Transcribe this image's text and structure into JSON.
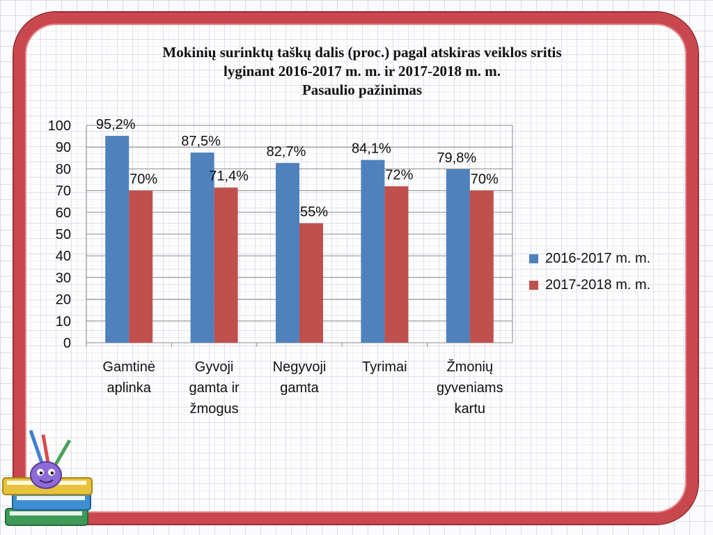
{
  "chart_data": {
    "type": "bar",
    "title_lines": [
      "Mokinių surinktų taškų dalis (proc.) pagal atskiras veiklos sritis",
      "lyginant 2016-2017 m. m. ir 2017-2018 m. m.",
      "Pasaulio pažinimas"
    ],
    "categories": [
      [
        "Gamtinė",
        "aplinka"
      ],
      [
        "Gyvoji",
        "gamta ir",
        "žmogus"
      ],
      [
        "Negyvoji",
        "gamta"
      ],
      [
        "Tyrimai"
      ],
      [
        "Žmonių",
        "gyveniams",
        "kartu"
      ]
    ],
    "series": [
      {
        "name": "2016-2017 m. m.",
        "color": "#4f81bd",
        "values": [
          95.2,
          87.5,
          82.7,
          84.1,
          79.8
        ],
        "labels": [
          "95,2%",
          "87,5%",
          "82,7%",
          "84,1%",
          "79,8%"
        ]
      },
      {
        "name": "2017-2018 m. m.",
        "color": "#c0504d",
        "values": [
          70,
          71.4,
          55,
          72,
          70
        ],
        "labels": [
          "70%",
          "71,4%",
          "55%",
          "72%",
          "70%"
        ]
      }
    ],
    "ylim": [
      0,
      100
    ],
    "yticks": [
      "0",
      "10",
      "20",
      "30",
      "40",
      "50",
      "60",
      "70",
      "80",
      "90",
      "100"
    ],
    "grid": true,
    "legend": "right"
  }
}
